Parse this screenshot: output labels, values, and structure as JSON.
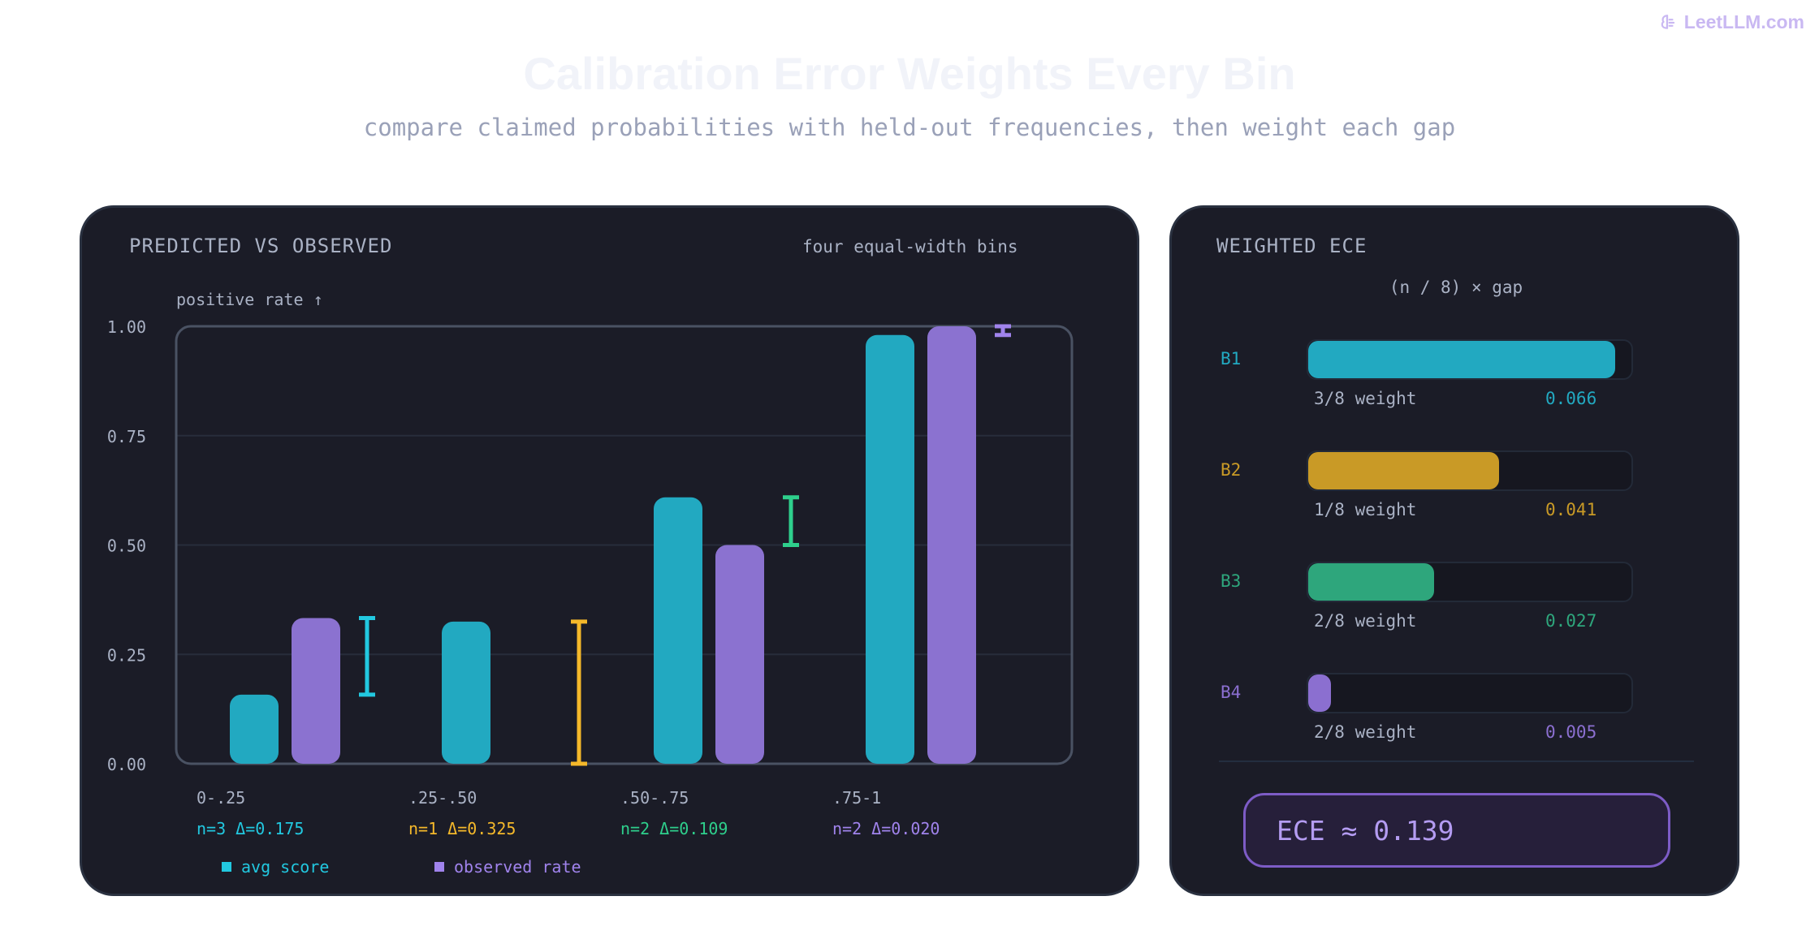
{
  "brand": {
    "name": "LeetLLM.com",
    "icon": "brain-icon"
  },
  "title": "Calibration Error Weights Every Bin",
  "subtitle": "compare claimed probabilities with held-out frequencies, then weight each gap",
  "left_panel": {
    "heading": "PREDICTED VS OBSERVED",
    "note": "four equal-width bins"
  },
  "right_panel": {
    "heading": "WEIGHTED ECE",
    "formula": "(n / 8) × gap",
    "bins": [
      {
        "label": "B1",
        "weight": "3/8 weight",
        "value": "0.066",
        "fraction": 0.95,
        "color": "#22a9c1"
      },
      {
        "label": "B2",
        "weight": "1/8 weight",
        "value": "0.041",
        "fraction": 0.59,
        "color": "#c99a26"
      },
      {
        "label": "B3",
        "weight": "2/8 weight",
        "value": "0.027",
        "fraction": 0.39,
        "color": "#2ea67c"
      },
      {
        "label": "B4",
        "weight": "2/8 weight",
        "value": "0.005",
        "fraction": 0.07,
        "color": "#8b6fd0"
      }
    ],
    "ece": "ECE ≈ 0.139"
  },
  "chart_data": {
    "type": "bar",
    "ylabel": "positive rate ↑",
    "ylim": [
      0,
      1
    ],
    "yticks": [
      {
        "value": 0,
        "label": "0.00"
      },
      {
        "value": 0.25,
        "label": "0.25"
      },
      {
        "value": 0.5,
        "label": "0.50"
      },
      {
        "value": 0.75,
        "label": "0.75"
      },
      {
        "value": 1,
        "label": "1.00"
      }
    ],
    "grid": true,
    "categories": [
      "0-.25",
      ".25-.50",
      ".50-.75",
      ".75-1"
    ],
    "category_notes": [
      "n=3 Δ=0.175",
      "n=1 Δ=0.325",
      "n=2 Δ=0.109",
      "n=2 Δ=0.020"
    ],
    "note_colors": [
      "#22c8e0",
      "#f5b82a",
      "#2ecf8c",
      "#a083ec"
    ],
    "gap_colors": [
      "#22c8e0",
      "#f5b82a",
      "#2ecf8c",
      "#a083ec"
    ],
    "series": [
      {
        "name": "avg score",
        "values": [
          0.158,
          0.325,
          0.609,
          0.98
        ],
        "color": "#22a9c1",
        "legend_color": "#22c8e0"
      },
      {
        "name": "observed rate",
        "values": [
          0.333,
          0.0,
          0.5,
          1.0
        ],
        "color": "#8b72d0",
        "legend_color": "#a083ec"
      }
    ]
  }
}
